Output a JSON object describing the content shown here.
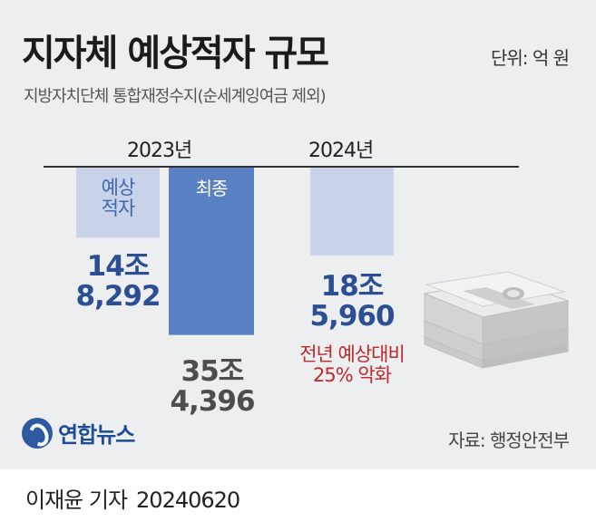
{
  "title": "지자체 예상적자 규모",
  "unit": "단위: 억 원",
  "subtitle": "지방자치단체 통합재정수지(순세계잉여금 제외)",
  "source": "자료: 행정안전부",
  "logo": "연합뉴스",
  "credit": {
    "author": "이재윤 기자",
    "date": "20240620"
  },
  "years": [
    "2023년",
    "2024년"
  ],
  "bar_labels": {
    "forecast": "예상\n적자",
    "final": "최종"
  },
  "value_labels": {
    "y2023_forecast": "14조\n8,292",
    "y2023_final": "35조\n4,396",
    "y2024_forecast": "18조\n5,960"
  },
  "annotation": "전년 예상대비\n25% 악화",
  "colors": {
    "forecast": "#c8d2e9",
    "final": "#5a80c4",
    "panel": "#eceeef",
    "accent_red": "#c0282c",
    "value_blue": "#2c4f93"
  },
  "icon": "money-stack-icon",
  "chart_data": {
    "type": "bar",
    "title": "지자체 예상적자 규모",
    "subtitle": "지방자치단체 통합재정수지(순세계잉여금 제외)",
    "unit": "억 원",
    "orientation": "downward",
    "categories": [
      "2023년",
      "2024년"
    ],
    "series": [
      {
        "name": "예상적자",
        "values": [
          148292,
          185960
        ]
      },
      {
        "name": "최종",
        "values": [
          354396,
          null
        ]
      }
    ],
    "ylim": [
      0,
      380000
    ],
    "grid": false,
    "annotations": [
      "전년 예상대비 25% 악화"
    ]
  }
}
